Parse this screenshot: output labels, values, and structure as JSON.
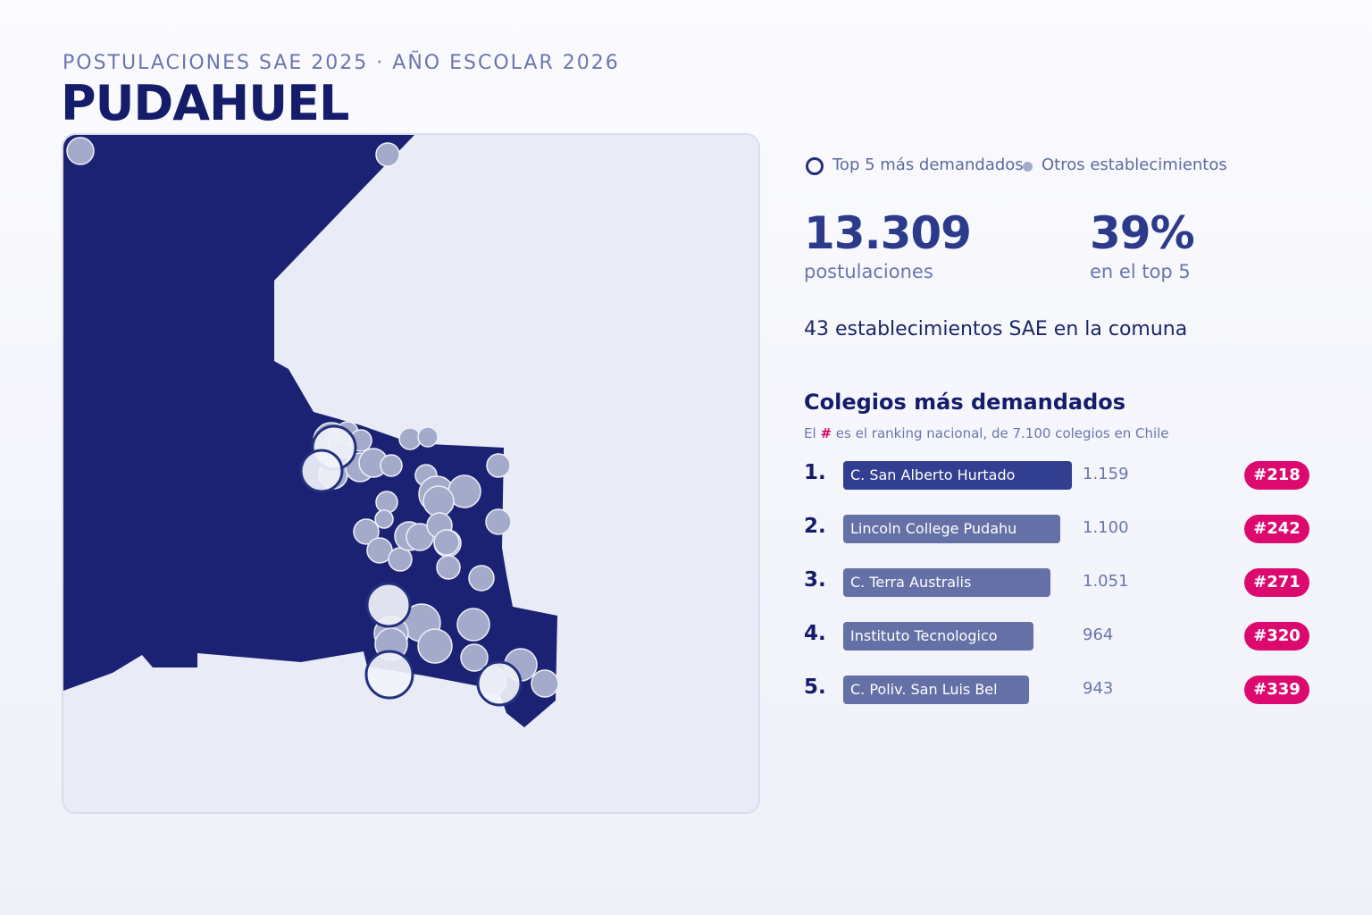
{
  "header": {
    "kicker": "POSTULACIONES SAE 2025 · AÑO ESCOLAR 2026",
    "title": "PUDAHUEL"
  },
  "colors": {
    "commune_fill": "#1c2273",
    "background_fill": "#e9ecf6",
    "top5_ring": "#23307e",
    "top5_fill": "#f1f3fa",
    "school_fill": "#a4aac9",
    "rank_badge": "#dc0a6f",
    "bar_first": "#323e8f",
    "bar_other": "#6470a6"
  },
  "legend": {
    "top5_label": "Top 5 más demandados",
    "others_label": "Otros establecimientos"
  },
  "stats": {
    "applications_value": "13.309",
    "applications_label": "postulaciones",
    "top5_share_value": "39%",
    "top5_share_label": "en el top 5",
    "schools_count_text": "43 establecimientos SAE en la comuna"
  },
  "ranking": {
    "heading": "Colegios más demandados",
    "note_prefix": "El",
    "note_hash": "#",
    "note_suffix": "es el ranking nacional, de 7.100 colegios en Chile",
    "max_value": 1159,
    "items": [
      {
        "rank": "1.",
        "name": "C. San Alberto Hurtado",
        "applications": 1159,
        "applications_label": "1.159",
        "national_rank": "#218"
      },
      {
        "rank": "2.",
        "name": "Lincoln College Pudahu",
        "applications": 1100,
        "applications_label": "1.100",
        "national_rank": "#242"
      },
      {
        "rank": "3.",
        "name": "C. Terra Australis",
        "applications": 1051,
        "applications_label": "1.051",
        "national_rank": "#271"
      },
      {
        "rank": "4.",
        "name": "Instituto Tecnologico",
        "applications": 964,
        "applications_label": "964",
        "national_rank": "#320"
      },
      {
        "rank": "5.",
        "name": "C. Poliv. San Luis Bel",
        "applications": 943,
        "applications_label": "943",
        "national_rank": "#339"
      }
    ]
  }
}
